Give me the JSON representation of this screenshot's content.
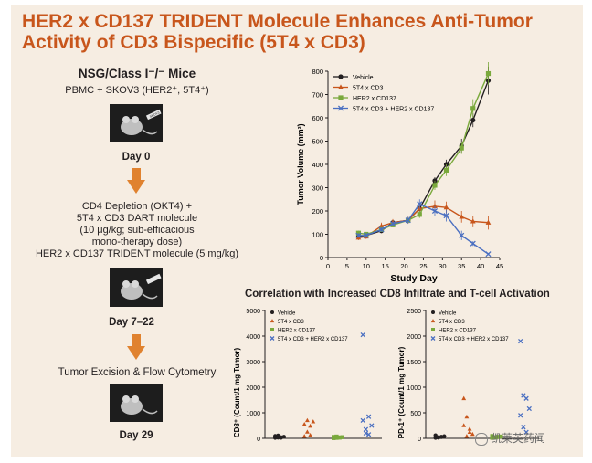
{
  "title": {
    "line1": "HER2 x CD137 TRIDENT Molecule Enhances Anti-Tumor",
    "line2": "Activity of CD3 Bispecific (5T4 x CD3)"
  },
  "protocol": {
    "mice_heading": "NSG/Class I⁻/⁻ Mice",
    "mice_sub": "PBMC + SKOV3 (HER2⁺, 5T4⁺)",
    "day0": "Day 0",
    "treatment_lines": [
      "CD4 Depletion (OKT4) +",
      "5T4 x CD3 DART molecule",
      "(10 μg/kg; sub-efficacious",
      "mono-therapy dose)",
      "HER2 x CD137 TRIDENT molecule (5 mg/kg)"
    ],
    "day7_22": "Day 7–22",
    "excision": "Tumor Excision & Flow Cytometry",
    "day29": "Day 29",
    "syringe_label": "SKOV3"
  },
  "colors": {
    "title": "#c8561c",
    "vehicle": "#231f20",
    "t5t4": "#c8561c",
    "her2": "#7aa93c",
    "combo": "#4a6fc1",
    "arrow": "#e0822f",
    "panel": "#f6ede2"
  },
  "correlation_title": "Correlation with Increased CD8 Infiltrate and T-cell Activation",
  "watermark": "凯莱英药闻",
  "chart_data": [
    {
      "type": "line",
      "title": "",
      "xlabel": "Study Day",
      "ylabel": "Tumor Volume (mm³)",
      "xlim": [
        0,
        45
      ],
      "ylim": [
        0,
        800
      ],
      "xticks": [
        0,
        5,
        10,
        15,
        20,
        25,
        30,
        35,
        40,
        45
      ],
      "yticks": [
        0,
        100,
        200,
        300,
        400,
        500,
        600,
        700,
        800
      ],
      "legend": [
        "Vehicle",
        "5T4 x CD3",
        "HER2 x CD137",
        "5T4 x CD3 + HER2 x CD137"
      ],
      "series": [
        {
          "name": "Vehicle",
          "marker": "circle",
          "color_key": "vehicle",
          "x": [
            8,
            10,
            14,
            17,
            21,
            24,
            28,
            31,
            35,
            38,
            42
          ],
          "y": [
            90,
            95,
            115,
            150,
            160,
            210,
            330,
            400,
            480,
            590,
            760
          ],
          "err": [
            10,
            10,
            10,
            10,
            10,
            15,
            15,
            20,
            30,
            30,
            60
          ]
        },
        {
          "name": "5T4 x CD3",
          "marker": "triangle",
          "color_key": "t5t4",
          "x": [
            8,
            10,
            14,
            17,
            21,
            24,
            28,
            31,
            35,
            38,
            42
          ],
          "y": [
            85,
            90,
            135,
            150,
            160,
            210,
            220,
            215,
            175,
            155,
            150
          ],
          "err": [
            10,
            10,
            15,
            15,
            15,
            15,
            25,
            25,
            25,
            25,
            30
          ]
        },
        {
          "name": "HER2 x CD137",
          "marker": "square",
          "color_key": "her2",
          "x": [
            8,
            10,
            14,
            17,
            21,
            24,
            28,
            31,
            35,
            38,
            42
          ],
          "y": [
            105,
            100,
            120,
            140,
            160,
            185,
            310,
            375,
            470,
            640,
            790
          ],
          "err": [
            10,
            10,
            10,
            10,
            10,
            15,
            20,
            25,
            25,
            40,
            50
          ]
        },
        {
          "name": "5T4 x CD3 + HER2 x CD137",
          "marker": "x",
          "color_key": "combo",
          "x": [
            8,
            10,
            14,
            17,
            21,
            24,
            28,
            31,
            35,
            38,
            42
          ],
          "y": [
            95,
            95,
            120,
            145,
            160,
            230,
            200,
            180,
            95,
            60,
            15
          ],
          "err": [
            10,
            10,
            10,
            10,
            15,
            20,
            20,
            25,
            20,
            10,
            5
          ]
        }
      ]
    },
    {
      "type": "scatter",
      "xlabel": "",
      "ylabel": "CD8⁺ (Count/1 mg Tumor)",
      "ylim": [
        0,
        5000
      ],
      "yticks": [
        0,
        1000,
        2000,
        3000,
        4000,
        5000
      ],
      "legend": [
        "Vehicle",
        "5T4 x CD3",
        "HER2 x CD137",
        "5T4 x CD3 + HER2 x CD137"
      ],
      "groups": [
        {
          "name": "Vehicle",
          "values": [
            20,
            30,
            40,
            60,
            90,
            110,
            25
          ]
        },
        {
          "name": "5T4 x CD3",
          "values": [
            550,
            700,
            120,
            650,
            80,
            250,
            480
          ]
        },
        {
          "name": "HER2 x CD137",
          "values": [
            10,
            20,
            30,
            45,
            55,
            70,
            35
          ]
        },
        {
          "name": "5T4 x CD3 + HER2 x CD137",
          "values": [
            4050,
            200,
            850,
            500,
            700,
            350,
            150
          ]
        }
      ]
    },
    {
      "type": "scatter",
      "xlabel": "",
      "ylabel": "PD-1⁺ (Count/1 mg Tumor)",
      "ylim": [
        0,
        2500
      ],
      "yticks": [
        0,
        500,
        1000,
        1500,
        2000,
        2500
      ],
      "legend": [
        "Vehicle",
        "5T4 x CD3",
        "HER2 x CD137",
        "5T4 x CD3 + HER2 x CD137"
      ],
      "groups": [
        {
          "name": "Vehicle",
          "values": [
            10,
            20,
            30,
            40,
            60,
            15,
            25
          ]
        },
        {
          "name": "5T4 x CD3",
          "values": [
            780,
            420,
            180,
            80,
            250,
            40,
            120
          ]
        },
        {
          "name": "HER2 x CD137",
          "values": [
            10,
            15,
            25,
            35,
            45,
            20,
            30
          ]
        },
        {
          "name": "5T4 x CD3 + HER2 x CD137",
          "values": [
            1900,
            840,
            780,
            580,
            450,
            220,
            120
          ]
        }
      ]
    }
  ]
}
